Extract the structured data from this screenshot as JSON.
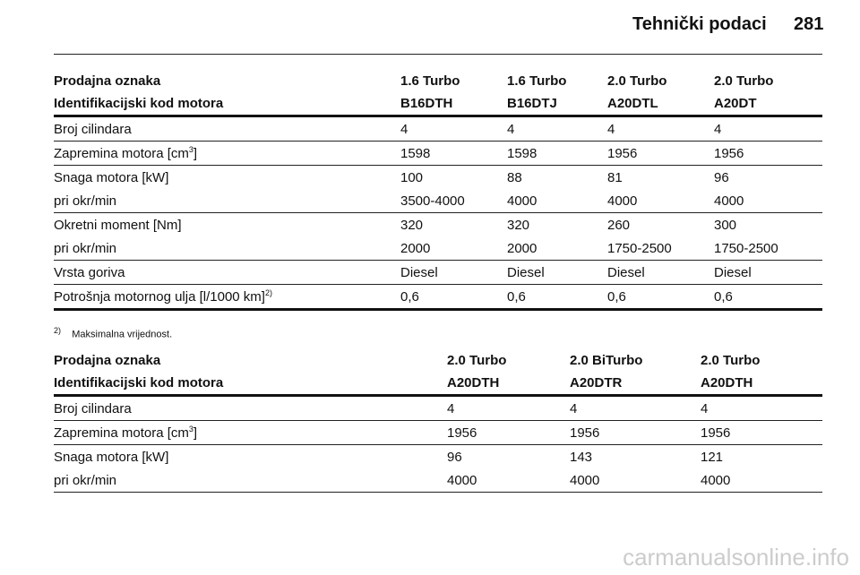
{
  "header": {
    "title": "Tehnički podaci",
    "page": "281"
  },
  "tables": [
    {
      "head": [
        [
          "Prodajna oznaka",
          "1.6 Turbo",
          "1.6 Turbo",
          "2.0 Turbo",
          "2.0 Turbo"
        ],
        [
          "Identifikacijski kod motora",
          "B16DTH",
          "B16DTJ",
          "A20DTL",
          "A20DT"
        ]
      ],
      "groups": [
        [
          {
            "label": "Broj cilindara",
            "cells": [
              "4",
              "4",
              "4",
              "4"
            ]
          }
        ],
        [
          {
            "label": "Zapremina motora [cm",
            "sup": "3",
            "after": "]",
            "cells": [
              "1598",
              "1598",
              "1956",
              "1956"
            ]
          }
        ],
        [
          {
            "label": "Snaga motora [kW]",
            "cells": [
              "100",
              "88",
              "81",
              "96"
            ]
          },
          {
            "label": "pri okr/min",
            "cells": [
              "3500-4000",
              "4000",
              "4000",
              "4000"
            ]
          }
        ],
        [
          {
            "label": "Okretni moment [Nm]",
            "cells": [
              "320",
              "320",
              "260",
              "300"
            ]
          },
          {
            "label": "pri okr/min",
            "cells": [
              "2000",
              "2000",
              "1750-2500",
              "1750-2500"
            ]
          }
        ],
        [
          {
            "label": "Vrsta goriva",
            "cells": [
              "Diesel",
              "Diesel",
              "Diesel",
              "Diesel"
            ]
          }
        ],
        [
          {
            "label": "Potrošnja motornog ulja [l/1000 km]",
            "sup": "2)",
            "cells": [
              "0,6",
              "0,6",
              "0,6",
              "0,6"
            ]
          }
        ]
      ]
    },
    {
      "head": [
        [
          "Prodajna oznaka",
          "2.0 Turbo",
          "2.0 BiTurbo",
          "2.0 Turbo"
        ],
        [
          "Identifikacijski kod motora",
          "A20DTH",
          "A20DTR",
          "A20DTH"
        ]
      ],
      "groups": [
        [
          {
            "label": "Broj cilindara",
            "cells": [
              "4",
              "4",
              "4"
            ]
          }
        ],
        [
          {
            "label": "Zapremina motora [cm",
            "sup": "3",
            "after": "]",
            "cells": [
              "1956",
              "1956",
              "1956"
            ]
          }
        ],
        [
          {
            "label": "Snaga motora [kW]",
            "cells": [
              "96",
              "143",
              "121"
            ]
          },
          {
            "label": "pri okr/min",
            "cells": [
              "4000",
              "4000",
              "4000"
            ]
          }
        ]
      ]
    }
  ],
  "footnote": {
    "mark": "2)",
    "text": "Maksimalna vrijednost."
  },
  "watermark": "carmanualsonline.info"
}
